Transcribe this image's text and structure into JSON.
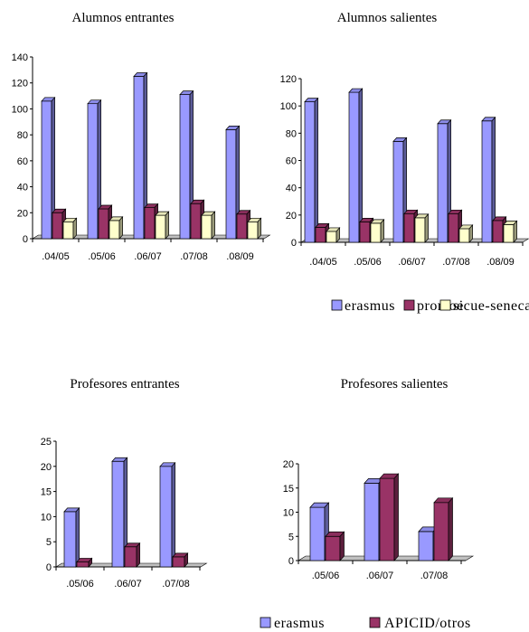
{
  "legend_top": {
    "items": [
      {
        "label": "erasmus",
        "color": "#9999ff"
      },
      {
        "label": "promoe",
        "color": "#993366"
      },
      {
        "label": "sicue-seneca",
        "color": "#ffffcc"
      }
    ]
  },
  "legend_bottom": {
    "items": [
      {
        "label": "erasmus",
        "color": "#9999ff"
      },
      {
        "label": "APICID/otros",
        "color": "#993366"
      }
    ]
  },
  "chart_data": [
    {
      "type": "bar",
      "title": "Alumnos entrantes",
      "categories": [
        ".04/05",
        ".05/06",
        ".06/07",
        ".07/08",
        ".08/09"
      ],
      "series": [
        {
          "name": "erasmus",
          "color": "#9999ff",
          "values": [
            106,
            104,
            125,
            111,
            84
          ]
        },
        {
          "name": "promoe",
          "color": "#993366",
          "values": [
            20,
            23,
            24,
            27,
            19
          ]
        },
        {
          "name": "sicue-seneca",
          "color": "#ffffcc",
          "values": [
            13,
            14,
            18,
            18,
            13
          ]
        }
      ],
      "ylim": [
        0,
        140
      ],
      "yticks": [
        0,
        20,
        40,
        60,
        80,
        100,
        120,
        140
      ],
      "grid": false,
      "legend": "shared-below"
    },
    {
      "type": "bar",
      "title": "Alumnos salientes",
      "categories": [
        ".04/05",
        ".05/06",
        ".06/07",
        ".07/08",
        ".08/09"
      ],
      "series": [
        {
          "name": "erasmus",
          "color": "#9999ff",
          "values": [
            103,
            110,
            74,
            87,
            89
          ]
        },
        {
          "name": "promoe",
          "color": "#993366",
          "values": [
            11,
            15,
            21,
            21,
            16
          ]
        },
        {
          "name": "sicue-seneca",
          "color": "#ffffcc",
          "values": [
            8,
            14,
            18,
            10,
            13
          ]
        }
      ],
      "ylim": [
        0,
        120
      ],
      "yticks": [
        0,
        20,
        40,
        60,
        80,
        100,
        120
      ],
      "grid": false,
      "legend": "shared-below"
    },
    {
      "type": "bar",
      "title": "Profesores entrantes",
      "categories": [
        ".05/06",
        ".06/07",
        ".07/08"
      ],
      "series": [
        {
          "name": "erasmus",
          "color": "#9999ff",
          "values": [
            11,
            21,
            20
          ]
        },
        {
          "name": "APICID/otros",
          "color": "#993366",
          "values": [
            1,
            4,
            2
          ]
        }
      ],
      "ylim": [
        0,
        25
      ],
      "yticks": [
        0,
        5,
        10,
        15,
        20,
        25
      ],
      "grid": false,
      "legend": "shared-below"
    },
    {
      "type": "bar",
      "title": "Profesores salientes",
      "categories": [
        ".05/06",
        ".06/07",
        ".07/08"
      ],
      "series": [
        {
          "name": "erasmus",
          "color": "#9999ff",
          "values": [
            11,
            16,
            6
          ]
        },
        {
          "name": "APICID/otros",
          "color": "#993366",
          "values": [
            5,
            17,
            12
          ]
        }
      ],
      "ylim": [
        0,
        20
      ],
      "yticks": [
        0,
        5,
        10,
        15,
        20
      ],
      "grid": false,
      "legend": "shared-below"
    }
  ]
}
